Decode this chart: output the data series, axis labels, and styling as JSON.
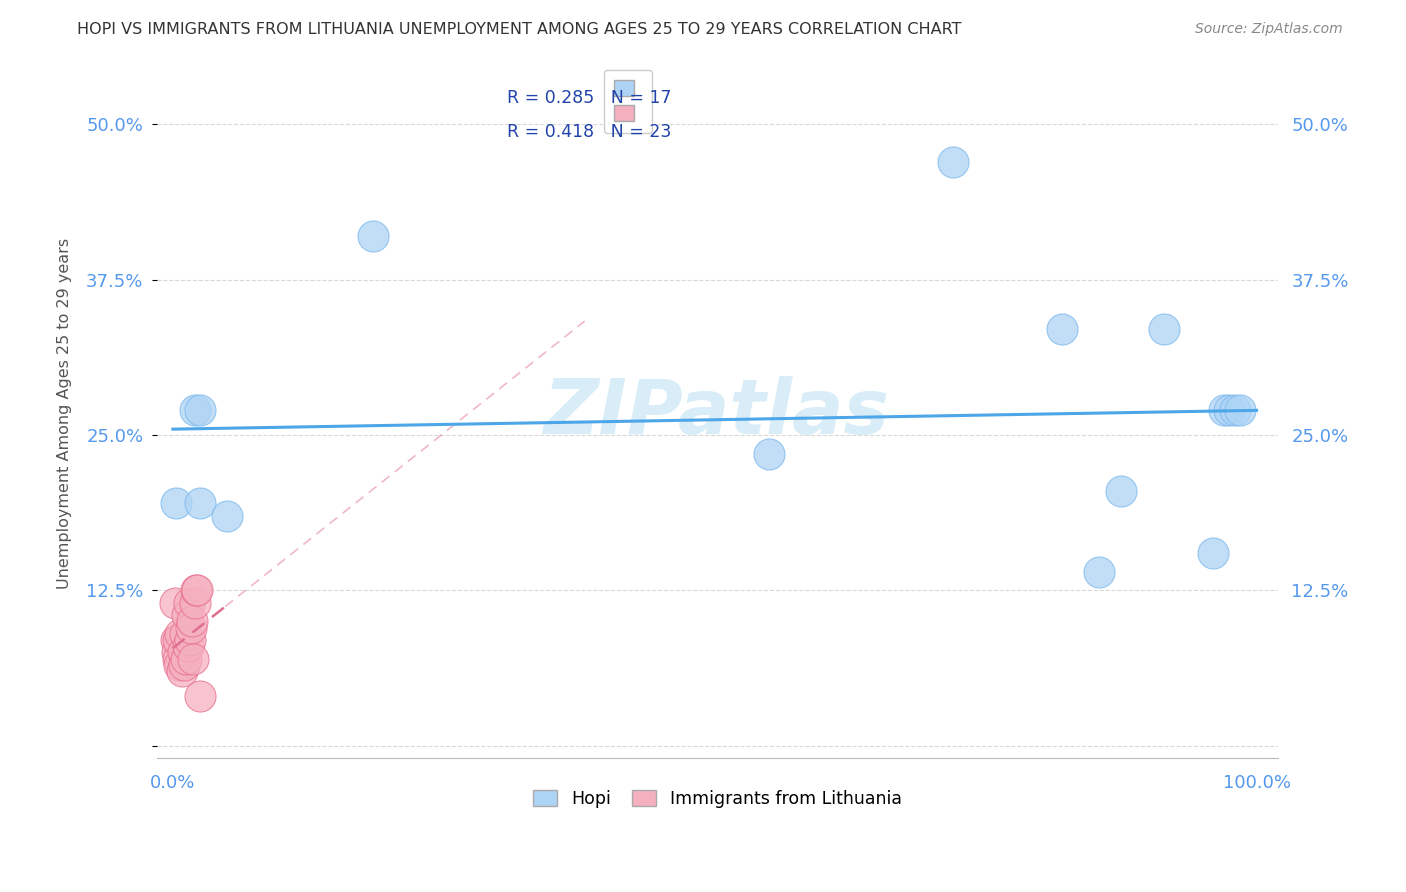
{
  "title": "HOPI VS IMMIGRANTS FROM LITHUANIA UNEMPLOYMENT AMONG AGES 25 TO 29 YEARS CORRELATION CHART",
  "source": "Source: ZipAtlas.com",
  "ylabel": "Unemployment Among Ages 25 to 29 years",
  "yticks": [
    0.0,
    0.125,
    0.25,
    0.375,
    0.5
  ],
  "ytick_labels_left": [
    "",
    "12.5%",
    "25.0%",
    "37.5%",
    "50.0%"
  ],
  "ytick_labels_right": [
    "",
    "12.5%",
    "25.0%",
    "37.5%",
    "50.0%"
  ],
  "xtick_left": "0.0%",
  "xtick_right": "100.0%",
  "legend_label1": "Hopi",
  "legend_label2": "Immigrants from Lithuania",
  "R1": "0.285",
  "N1": "17",
  "R2": "0.418",
  "N2": "23",
  "background_color": "#ffffff",
  "grid_color": "#d8d8d8",
  "hopi_color": "#aed4f5",
  "hopi_edge_color": "#7ab8ee",
  "lithuania_color": "#f5b0c0",
  "lithuania_edge_color": "#e87090",
  "trend_line1_color": "#4da6e8",
  "trend_line2_color": "#e07090",
  "title_color": "#333333",
  "source_color": "#888888",
  "tick_color": "#5599ee",
  "ylabel_color": "#555555",
  "watermark_text": "ZIPatlas",
  "watermark_color": "#d8edf8",
  "hopi_x": [
    0.003,
    0.02,
    0.025,
    0.025,
    0.05,
    0.185,
    0.55,
    0.72,
    0.82,
    0.855,
    0.875,
    0.915,
    0.96,
    0.97,
    0.975,
    0.98,
    0.985
  ],
  "hopi_y": [
    0.195,
    0.27,
    0.27,
    0.195,
    0.185,
    0.41,
    0.235,
    0.47,
    0.335,
    0.14,
    0.205,
    0.335,
    0.155,
    0.27,
    0.27,
    0.27,
    0.27
  ],
  "lithuania_x": [
    0.002,
    0.003,
    0.004,
    0.005,
    0.005,
    0.006,
    0.007,
    0.008,
    0.009,
    0.01,
    0.011,
    0.012,
    0.013,
    0.014,
    0.015,
    0.016,
    0.017,
    0.018,
    0.019,
    0.02,
    0.021,
    0.022,
    0.025
  ],
  "lithuania_y": [
    0.115,
    0.085,
    0.075,
    0.07,
    0.085,
    0.065,
    0.09,
    0.06,
    0.075,
    0.065,
    0.09,
    0.07,
    0.105,
    0.08,
    0.115,
    0.085,
    0.095,
    0.1,
    0.07,
    0.115,
    0.125,
    0.125,
    0.04
  ],
  "xlim": [
    -0.015,
    1.02
  ],
  "ylim": [
    -0.01,
    0.545
  ]
}
